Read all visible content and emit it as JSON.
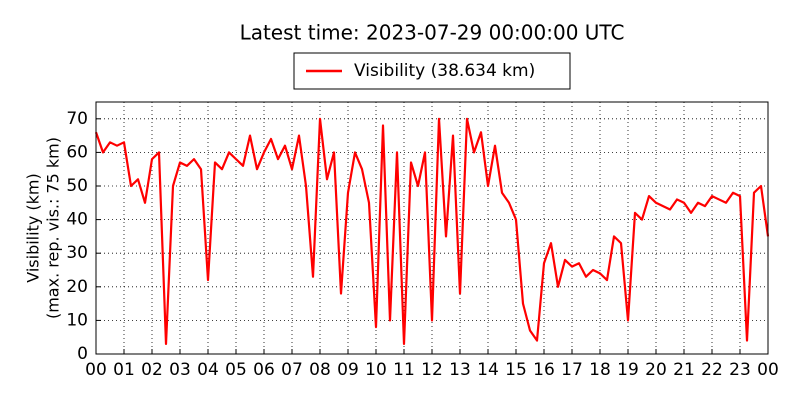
{
  "chart_data": {
    "type": "line",
    "title": "Latest time: 2023-07-29 00:00:00 UTC",
    "ylabel": [
      "Visibility (km)",
      "(max. rep. vis.: 75 km)"
    ],
    "x": [
      0,
      0.25,
      0.5,
      0.75,
      1,
      1.25,
      1.5,
      1.75,
      2,
      2.25,
      2.5,
      2.75,
      3,
      3.25,
      3.5,
      3.75,
      4,
      4.25,
      4.5,
      4.75,
      5,
      5.25,
      5.5,
      5.75,
      6,
      6.25,
      6.5,
      6.75,
      7,
      7.25,
      7.5,
      7.75,
      8,
      8.25,
      8.5,
      8.75,
      9,
      9.25,
      9.5,
      9.75,
      10,
      10.25,
      10.5,
      10.75,
      11,
      11.25,
      11.5,
      11.75,
      12,
      12.25,
      12.5,
      12.75,
      13,
      13.25,
      13.5,
      13.75,
      14,
      14.25,
      14.5,
      14.75,
      15,
      15.25,
      15.5,
      15.75,
      16,
      16.25,
      16.5,
      16.75,
      17,
      17.25,
      17.5,
      17.75,
      18,
      18.25,
      18.5,
      18.75,
      19,
      19.25,
      19.5,
      19.75,
      20,
      20.25,
      20.5,
      20.75,
      21,
      21.25,
      21.5,
      21.75,
      22,
      22.25,
      22.5,
      22.75,
      23,
      23.25,
      23.5,
      23.75,
      24
    ],
    "series": [
      {
        "name": "Visibility (38.634 km)",
        "color": "#ff0000",
        "values": [
          66,
          60,
          63,
          62,
          63,
          50,
          52,
          45,
          58,
          60,
          3,
          50,
          57,
          56,
          58,
          55,
          22,
          57,
          55,
          60,
          58,
          56,
          65,
          55,
          60,
          64,
          58,
          62,
          55,
          65,
          50,
          23,
          70,
          52,
          60,
          18,
          48,
          60,
          55,
          45,
          8,
          68,
          10,
          60,
          3,
          57,
          50,
          60,
          10,
          70,
          35,
          65,
          18,
          70,
          60,
          66,
          50,
          62,
          48,
          45,
          40,
          15,
          7,
          4,
          27,
          33,
          20,
          28,
          26,
          27,
          23,
          25,
          24,
          22,
          35,
          33,
          10,
          42,
          40,
          47,
          45,
          44,
          43,
          46,
          45,
          42,
          45,
          44,
          47,
          46,
          45,
          48,
          47,
          4,
          48,
          50,
          35
        ]
      }
    ],
    "xlim": [
      0,
      24
    ],
    "xticks": [
      {
        "value": 0,
        "label": "00"
      },
      {
        "value": 1,
        "label": "01"
      },
      {
        "value": 2,
        "label": "02"
      },
      {
        "value": 3,
        "label": "03"
      },
      {
        "value": 4,
        "label": "04"
      },
      {
        "value": 5,
        "label": "05"
      },
      {
        "value": 6,
        "label": "06"
      },
      {
        "value": 7,
        "label": "07"
      },
      {
        "value": 8,
        "label": "08"
      },
      {
        "value": 9,
        "label": "09"
      },
      {
        "value": 10,
        "label": "10"
      },
      {
        "value": 11,
        "label": "11"
      },
      {
        "value": 12,
        "label": "12"
      },
      {
        "value": 13,
        "label": "13"
      },
      {
        "value": 14,
        "label": "14"
      },
      {
        "value": 15,
        "label": "15"
      },
      {
        "value": 16,
        "label": "16"
      },
      {
        "value": 17,
        "label": "17"
      },
      {
        "value": 18,
        "label": "18"
      },
      {
        "value": 19,
        "label": "19"
      },
      {
        "value": 20,
        "label": "20"
      },
      {
        "value": 21,
        "label": "21"
      },
      {
        "value": 22,
        "label": "22"
      },
      {
        "value": 23,
        "label": "23"
      },
      {
        "value": 24,
        "label": "00"
      }
    ],
    "ylim": [
      0,
      75
    ],
    "yticks": [
      0,
      10,
      20,
      30,
      40,
      50,
      60,
      70
    ],
    "grid": true,
    "legend": "top"
  }
}
